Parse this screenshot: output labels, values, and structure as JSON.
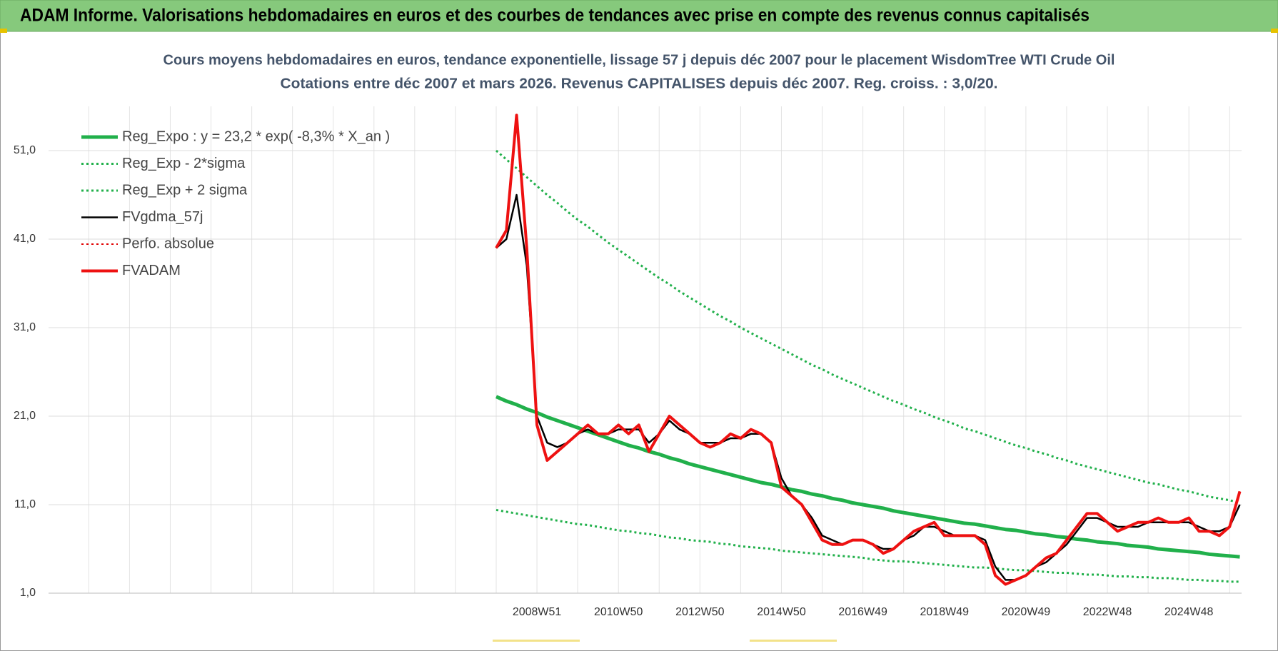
{
  "header": {
    "title": "ADAM Informe. Valorisations hebdomadaires en euros et des courbes de tendances avec prise en compte des revenus connus capitalisés"
  },
  "chart_data": {
    "type": "line",
    "title": "Cours moyens hebdomadaires en euros, tendance exponentielle, lissage 57 j depuis déc 2007 pour le placement WisdomTree WTI Crude Oil",
    "subtitle": "Cotations entre déc 2007 et mars 2026.  Revenus CAPITALISES depuis déc 2007.  Reg. croiss. : 3,0/20.",
    "categories": [
      null,
      null,
      null,
      null,
      "2008W51",
      null,
      null,
      null,
      null,
      null,
      null,
      null,
      "2010W50",
      null,
      null,
      null,
      null,
      null,
      null,
      null,
      "2012W50",
      null,
      null,
      null,
      null,
      null,
      null,
      null,
      "2014W50",
      null,
      null,
      null,
      null,
      null,
      null,
      null,
      "2016W49",
      null,
      null,
      null,
      null,
      null,
      null,
      null,
      "2018W49",
      null,
      null,
      null,
      null,
      null,
      null,
      null,
      "2020W49",
      null,
      null,
      null,
      null,
      null,
      null,
      null,
      "2022W48",
      null,
      null,
      null,
      null,
      null,
      null,
      null,
      "2024W48",
      null,
      null,
      null,
      null,
      null
    ],
    "ylim": [
      1,
      56
    ],
    "yticks": [
      {
        "value": 1,
        "label": "1,0"
      },
      {
        "value": 11,
        "label": "11,0"
      },
      {
        "value": 21,
        "label": "21,0"
      },
      {
        "value": 31,
        "label": "31,0"
      },
      {
        "value": 41,
        "label": "41,0"
      },
      {
        "value": 51,
        "label": "51,0"
      }
    ],
    "grid": true,
    "legend": "top-left",
    "series": [
      {
        "name": "Reg_Expo : y = 23,2 * exp( -8,3% *  X_an )",
        "color": "#21b04b",
        "style": "solid",
        "width": 5,
        "values": [
          23.2,
          22.7,
          22.3,
          21.8,
          21.4,
          20.9,
          20.5,
          20.1,
          19.7,
          19.3,
          18.9,
          18.5,
          18.1,
          17.7,
          17.4,
          17.0,
          16.7,
          16.3,
          16.0,
          15.6,
          15.3,
          15.0,
          14.7,
          14.4,
          14.1,
          13.8,
          13.5,
          13.3,
          13.0,
          12.7,
          12.5,
          12.2,
          12.0,
          11.7,
          11.5,
          11.2,
          11.0,
          10.8,
          10.6,
          10.3,
          10.1,
          9.9,
          9.7,
          9.5,
          9.3,
          9.1,
          8.9,
          8.8,
          8.6,
          8.4,
          8.2,
          8.1,
          7.9,
          7.7,
          7.6,
          7.4,
          7.3,
          7.1,
          7.0,
          6.8,
          6.7,
          6.6,
          6.4,
          6.3,
          6.2,
          6.0,
          5.9,
          5.8,
          5.7,
          5.6,
          5.4,
          5.3,
          5.2,
          5.1
        ]
      },
      {
        "name": "Reg_Exp - 2*sigma",
        "color": "#21b04b",
        "style": "dotted",
        "width": 3,
        "values": [
          10.4,
          10.2,
          10.0,
          9.8,
          9.6,
          9.4,
          9.2,
          9.0,
          8.8,
          8.7,
          8.5,
          8.3,
          8.1,
          8.0,
          7.8,
          7.7,
          7.5,
          7.3,
          7.2,
          7.0,
          6.9,
          6.8,
          6.6,
          6.5,
          6.3,
          6.2,
          6.1,
          6.0,
          5.8,
          5.7,
          5.6,
          5.5,
          5.4,
          5.3,
          5.2,
          5.1,
          5.0,
          4.8,
          4.7,
          4.6,
          4.6,
          4.5,
          4.4,
          4.3,
          4.2,
          4.1,
          4.0,
          3.9,
          3.9,
          3.8,
          3.7,
          3.6,
          3.6,
          3.5,
          3.4,
          3.3,
          3.3,
          3.2,
          3.1,
          3.1,
          3.0,
          2.9,
          2.9,
          2.8,
          2.8,
          2.7,
          2.7,
          2.6,
          2.5,
          2.5,
          2.4,
          2.4,
          2.3,
          2.3
        ]
      },
      {
        "name": "Reg_Exp + 2 sigma",
        "color": "#21b04b",
        "style": "dotted",
        "width": 3,
        "values": [
          51.0,
          50.0,
          49.0,
          48.0,
          47.0,
          46.0,
          45.1,
          44.1,
          43.2,
          42.4,
          41.5,
          40.6,
          39.8,
          39.0,
          38.2,
          37.4,
          36.6,
          35.9,
          35.1,
          34.4,
          33.7,
          33.0,
          32.3,
          31.7,
          31.0,
          30.4,
          29.8,
          29.2,
          28.6,
          28.0,
          27.4,
          26.8,
          26.3,
          25.7,
          25.2,
          24.7,
          24.2,
          23.7,
          23.2,
          22.7,
          22.3,
          21.8,
          21.4,
          20.9,
          20.5,
          20.1,
          19.6,
          19.3,
          18.9,
          18.5,
          18.1,
          17.7,
          17.4,
          17.0,
          16.7,
          16.3,
          16.0,
          15.6,
          15.3,
          15.0,
          14.7,
          14.4,
          14.1,
          13.8,
          13.5,
          13.3,
          13.0,
          12.7,
          12.5,
          12.2,
          11.9,
          11.7,
          11.5,
          11.2
        ]
      },
      {
        "name": "FVgdma_57j",
        "color": "#000000",
        "style": "solid",
        "width": 2.5,
        "values": [
          40,
          41,
          46,
          38,
          21,
          18,
          17.5,
          18,
          19,
          19.5,
          19,
          19,
          19.5,
          19.5,
          19.5,
          18,
          19,
          20.5,
          19.5,
          19,
          18,
          18,
          18,
          18.5,
          18.5,
          19,
          19,
          18,
          14,
          12,
          11,
          9.5,
          7.5,
          7,
          6.5,
          7,
          7,
          6.5,
          6,
          6,
          7,
          7.5,
          8.5,
          8.5,
          8,
          7.5,
          7.5,
          7.5,
          7,
          4,
          2.5,
          2.5,
          3,
          4,
          4.5,
          5.5,
          6.5,
          8,
          9.5,
          9.5,
          9,
          8.5,
          8.5,
          8.5,
          9,
          9,
          9,
          9,
          9,
          8.5,
          8,
          8,
          8.5,
          11
        ]
      },
      {
        "name": "Perfo. absolue",
        "color": "#e00000",
        "style": "dotted",
        "width": 2,
        "values": [
          40,
          42,
          55,
          40,
          20,
          16,
          17,
          18,
          19,
          20,
          19,
          19,
          20,
          19,
          20,
          17,
          19,
          21,
          20,
          19,
          18,
          17.5,
          18,
          19,
          18.5,
          19.5,
          19,
          18,
          13,
          12,
          11,
          9,
          7,
          6.5,
          6.5,
          7,
          7,
          6.5,
          5.5,
          6,
          7,
          8,
          8.5,
          9,
          7.5,
          7.5,
          7.5,
          7.5,
          6.5,
          3,
          2,
          2.5,
          3,
          4,
          5,
          5.5,
          7,
          8.5,
          10,
          10,
          9,
          8,
          8.5,
          9,
          9,
          9.5,
          9,
          9,
          9.5,
          8,
          8,
          7.5,
          8.5,
          12.5
        ]
      },
      {
        "name": "FVADAM",
        "color": "#ee1111",
        "style": "solid",
        "width": 4,
        "values": [
          40,
          42,
          55,
          40,
          20,
          16,
          17,
          18,
          19,
          20,
          19,
          19,
          20,
          19,
          20,
          17,
          19,
          21,
          20,
          19,
          18,
          17.5,
          18,
          19,
          18.5,
          19.5,
          19,
          18,
          13,
          12,
          11,
          9,
          7,
          6.5,
          6.5,
          7,
          7,
          6.5,
          5.5,
          6,
          7,
          8,
          8.5,
          9,
          7.5,
          7.5,
          7.5,
          7.5,
          6.5,
          3,
          2,
          2.5,
          3,
          4,
          5,
          5.5,
          7,
          8.5,
          10,
          10,
          9,
          8,
          8.5,
          9,
          9,
          9.5,
          9,
          9,
          9.5,
          8,
          8,
          7.5,
          8.5,
          12.5
        ]
      }
    ]
  }
}
